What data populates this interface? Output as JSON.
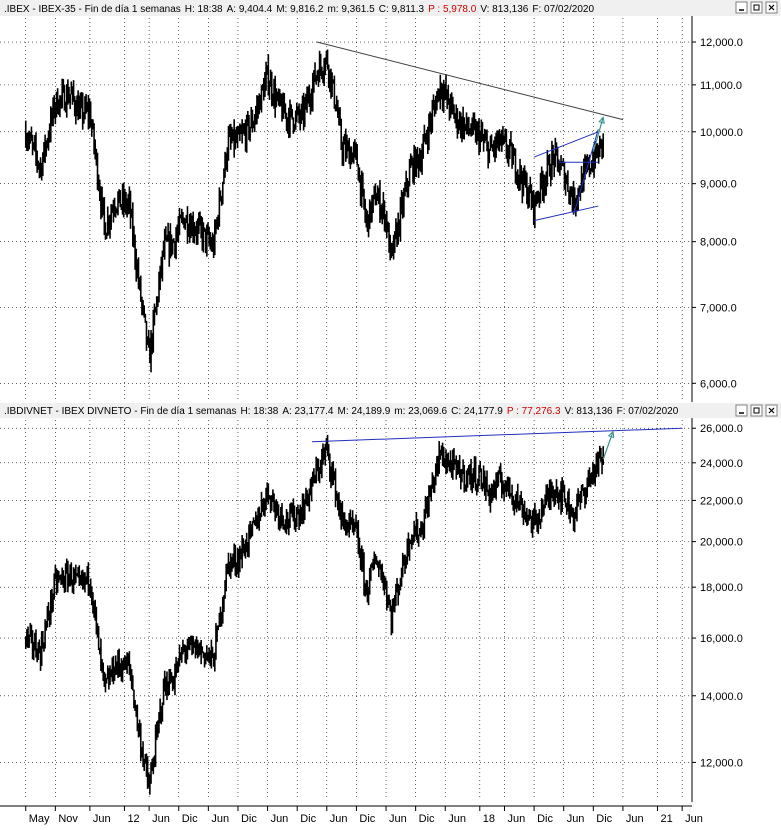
{
  "panels": [
    {
      "id": "top",
      "header": {
        "symbol": ".IBEX",
        "name": "IBEX-35",
        "period": "Fin de día 1 semanas",
        "H": "H: 18:38",
        "A": "A: 9,404.4",
        "M": "M: 9,816.2",
        "m": "m: 9,361.5",
        "C": "C: 9,811.3",
        "P": "P : 5,978.0",
        "V": "V: 813,136",
        "F": "F: 07/02/2020"
      }
    },
    {
      "id": "bottom",
      "header": {
        "symbol": ".IBDIVNET",
        "name": "IBEX DIVNETO",
        "period": "Fin de día 1 semanas",
        "H": "H: 18:38",
        "A": "A: 23,177.4",
        "M": "M: 24,189.9",
        "m": "m: 23,069.6",
        "C": "C: 24,177.9",
        "P": "P : 77,276.3",
        "V": "V: 813,136",
        "F": "F: 07/02/2020"
      }
    }
  ],
  "colors": {
    "price": "#000000",
    "trendline": "#404040",
    "channel": "#1f2fbf",
    "arrow": "#3a8f8f",
    "p_value": "#d00000",
    "header_bg": "#f0f0f0",
    "grid": "#000000"
  },
  "icons": [
    "minimize-icon",
    "maximize-icon",
    "close-icon"
  ],
  "chart_data": [
    {
      "type": "line",
      "style": "weekly candlestick bars",
      "title": ".IBEX - IBEX-35",
      "yscale": "log",
      "ylim": [
        5800,
        12600
      ],
      "yticks": [
        6000,
        7000,
        8000,
        9000,
        10000,
        11000,
        12000
      ],
      "ytick_labels": [
        "6,000.0",
        "7,000.0",
        "8,000.0",
        "9,000.0",
        "10,000.0",
        "11,000.0",
        "12,000.0"
      ],
      "grid": true,
      "series": [
        {
          "x": [
            "2010-05",
            "2010-08",
            "2010-11",
            "2011-02",
            "2011-04",
            "2011-06",
            "2011-08",
            "2011-09",
            "2011-11",
            "2012-02",
            "2012-04",
            "2012-06",
            "2012-07",
            "2012-09",
            "2012-11",
            "2013-01",
            "2013-04",
            "2013-07",
            "2013-10",
            "2013-12",
            "2014-03",
            "2014-06",
            "2014-08",
            "2014-10",
            "2015-01",
            "2015-04",
            "2015-06",
            "2015-08",
            "2015-09",
            "2015-12",
            "2016-02",
            "2016-04",
            "2016-06",
            "2016-07",
            "2016-11",
            "2017-01",
            "2017-05",
            "2017-08",
            "2017-10",
            "2018-01",
            "2018-03",
            "2018-05",
            "2018-07",
            "2018-10",
            "2018-12",
            "2019-01",
            "2019-04",
            "2019-06",
            "2019-08",
            "2019-11",
            "2020-01",
            "2020-02"
          ],
          "values": [
            10000,
            9300,
            10600,
            10800,
            10400,
            10400,
            8900,
            8200,
            8700,
            8600,
            7300,
            6300,
            6800,
            7900,
            8000,
            8400,
            8200,
            7900,
            9800,
            9800,
            10200,
            11200,
            10600,
            10300,
            10300,
            11300,
            11600,
            10500,
            9700,
            9500,
            8300,
            8800,
            8400,
            7700,
            9300,
            9500,
            11000,
            10300,
            10100,
            9900,
            9600,
            9800,
            9600,
            9000,
            8600,
            8900,
            9500,
            9200,
            8700,
            9300,
            9600,
            9811
          ]
        }
      ],
      "annotations": {
        "resistance_trendline": {
          "start": [
            "2015-04",
            12000
          ],
          "end": [
            "2020-06",
            10250
          ]
        },
        "channel_upper": {
          "start": [
            "2018-12",
            9500
          ],
          "end": [
            "2020-01",
            10000
          ]
        },
        "channel_lower": {
          "start": [
            "2018-12",
            8350
          ],
          "end": [
            "2020-01",
            8600
          ]
        },
        "support_line": {
          "start": [
            "2019-08",
            8450
          ],
          "end": [
            "2020-01",
            10050
          ]
        },
        "horizontal_level": {
          "start": [
            "2019-05",
            9400
          ],
          "end": [
            "2020-01",
            9400
          ]
        },
        "projection_arrow": {
          "start": [
            "2019-12",
            9600
          ],
          "end": [
            "2020-02",
            10300
          ]
        }
      }
    },
    {
      "type": "line",
      "style": "weekly candlestick bars",
      "title": ".IBDIVNET - IBEX DIVNETO",
      "yscale": "log",
      "ylim": [
        11000,
        26500
      ],
      "yticks": [
        12000,
        14000,
        16000,
        18000,
        20000,
        22000,
        24000,
        26000
      ],
      "ytick_labels": [
        "12,000.0",
        "14,000.0",
        "16,000.0",
        "18,000.0",
        "20,000.0",
        "22,000.0",
        "24,000.0",
        "26,000.0"
      ],
      "grid": true,
      "series": [
        {
          "x": [
            "2010-05",
            "2010-08",
            "2010-11",
            "2011-02",
            "2011-04",
            "2011-06",
            "2011-08",
            "2011-09",
            "2011-11",
            "2012-02",
            "2012-04",
            "2012-06",
            "2012-07",
            "2012-09",
            "2012-11",
            "2013-01",
            "2013-04",
            "2013-07",
            "2013-10",
            "2013-12",
            "2014-03",
            "2014-06",
            "2014-08",
            "2014-10",
            "2015-01",
            "2015-04",
            "2015-06",
            "2015-08",
            "2015-09",
            "2015-12",
            "2016-02",
            "2016-04",
            "2016-06",
            "2016-07",
            "2016-11",
            "2017-01",
            "2017-05",
            "2017-08",
            "2017-10",
            "2018-01",
            "2018-03",
            "2018-05",
            "2018-07",
            "2018-10",
            "2018-12",
            "2019-01",
            "2019-04",
            "2019-06",
            "2019-08",
            "2019-11",
            "2020-01",
            "2020-02"
          ],
          "values": [
            16000,
            15500,
            18200,
            18500,
            18000,
            18500,
            15300,
            14200,
            15000,
            15000,
            12800,
            11300,
            12200,
            14300,
            14600,
            15600,
            15600,
            15200,
            19000,
            19200,
            20500,
            22500,
            21500,
            21000,
            21500,
            23500,
            24800,
            22300,
            21000,
            20400,
            17800,
            19300,
            18000,
            16800,
            20400,
            20500,
            24500,
            23600,
            23300,
            23300,
            22300,
            23000,
            22600,
            21500,
            20800,
            21300,
            22700,
            22200,
            21300,
            23000,
            24000,
            24178
          ]
        }
      ],
      "annotations": {
        "resistance_trendline": {
          "start": [
            "2015-03",
            25200
          ],
          "end": [
            "2021-06",
            26000
          ]
        },
        "projection_arrow": {
          "start": [
            "2020-02",
            24200
          ],
          "end": [
            "2020-04",
            25800
          ]
        }
      }
    }
  ],
  "xaxis": {
    "labels": [
      "May",
      "Nov",
      "Jun",
      "12",
      "Jun",
      "Dic",
      "Jun",
      "Dic",
      "Jun",
      "Dic",
      "Jun",
      "Dic",
      "Jun",
      "Dic",
      "Jun",
      "18",
      "Jun",
      "Dic",
      "Jun",
      "Dic",
      "Jun",
      "21",
      "Jun"
    ],
    "label_dates": [
      "2010-05",
      "2010-11",
      "2011-06",
      "2012-01",
      "2012-06",
      "2012-12",
      "2013-06",
      "2013-12",
      "2014-06",
      "2014-12",
      "2015-06",
      "2015-12",
      "2016-06",
      "2016-12",
      "2017-06",
      "2018-01",
      "2018-06",
      "2018-12",
      "2019-06",
      "2019-12",
      "2020-06",
      "2021-01",
      "2021-06"
    ]
  }
}
